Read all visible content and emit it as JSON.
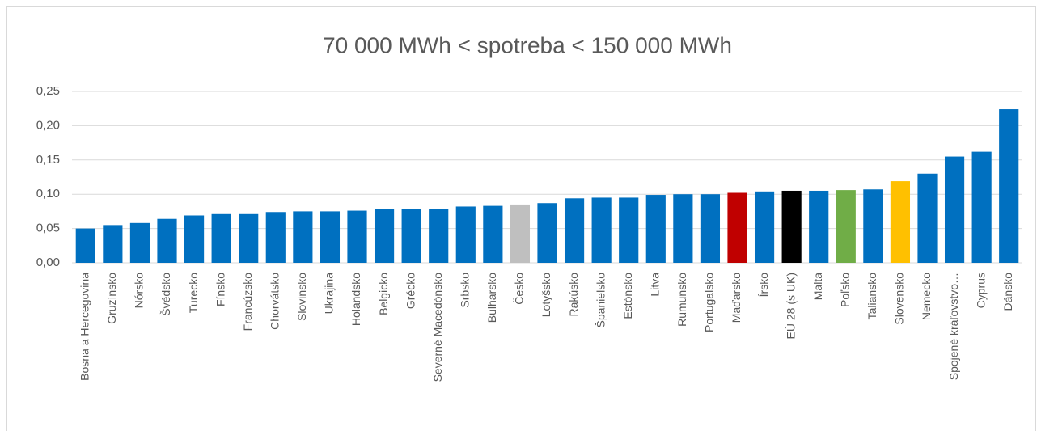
{
  "chart_data": {
    "type": "bar",
    "title": "70 000 MWh < spotreba < 150 000 MWh",
    "categories": [
      "Bosna a Hercegovina",
      "Gruzínsko",
      "Nórsko",
      "Švédsko",
      "Turecko",
      "Fínsko",
      "Francúzsko",
      "Chorvátsko",
      "Slovinsko",
      "Ukrajina",
      "Holandsko",
      "Belgicko",
      "Grécko",
      "Severné Macedónsko",
      "Srbsko",
      "Bulharsko",
      "Česko",
      "Lotyšsko",
      "Rakúsko",
      "Španielsko",
      "Estónsko",
      "Litva",
      "Rumunsko",
      "Portugalsko",
      "Maďarsko",
      "Írsko",
      "EÚ 28 (s UK)",
      "Malta",
      "Poľsko",
      "Taliansko",
      "Slovensko",
      "Nemecko",
      "Spojené kráľovstvo…",
      "Cyprus",
      "Dánsko"
    ],
    "values": [
      0.05,
      0.055,
      0.058,
      0.064,
      0.069,
      0.071,
      0.071,
      0.074,
      0.075,
      0.075,
      0.076,
      0.079,
      0.079,
      0.079,
      0.082,
      0.083,
      0.085,
      0.087,
      0.094,
      0.095,
      0.095,
      0.099,
      0.1,
      0.1,
      0.102,
      0.104,
      0.105,
      0.105,
      0.106,
      0.107,
      0.119,
      0.13,
      0.155,
      0.162,
      0.224
    ],
    "colors": [
      "#0070c0",
      "#0070c0",
      "#0070c0",
      "#0070c0",
      "#0070c0",
      "#0070c0",
      "#0070c0",
      "#0070c0",
      "#0070c0",
      "#0070c0",
      "#0070c0",
      "#0070c0",
      "#0070c0",
      "#0070c0",
      "#0070c0",
      "#0070c0",
      "#bfbfbf",
      "#0070c0",
      "#0070c0",
      "#0070c0",
      "#0070c0",
      "#0070c0",
      "#0070c0",
      "#0070c0",
      "#c00000",
      "#0070c0",
      "#000000",
      "#0070c0",
      "#70ad47",
      "#0070c0",
      "#ffc000",
      "#0070c0",
      "#0070c0",
      "#0070c0",
      "#0070c0"
    ],
    "ylim": [
      0,
      0.25
    ],
    "yticks": [
      {
        "value": 0,
        "label": "0,00"
      },
      {
        "value": 0.05,
        "label": "0,05"
      },
      {
        "value": 0.1,
        "label": "0,10"
      },
      {
        "value": 0.15,
        "label": "0,15"
      },
      {
        "value": 0.2,
        "label": "0,20"
      },
      {
        "value": 0.25,
        "label": "0,25"
      }
    ],
    "grid": true
  }
}
